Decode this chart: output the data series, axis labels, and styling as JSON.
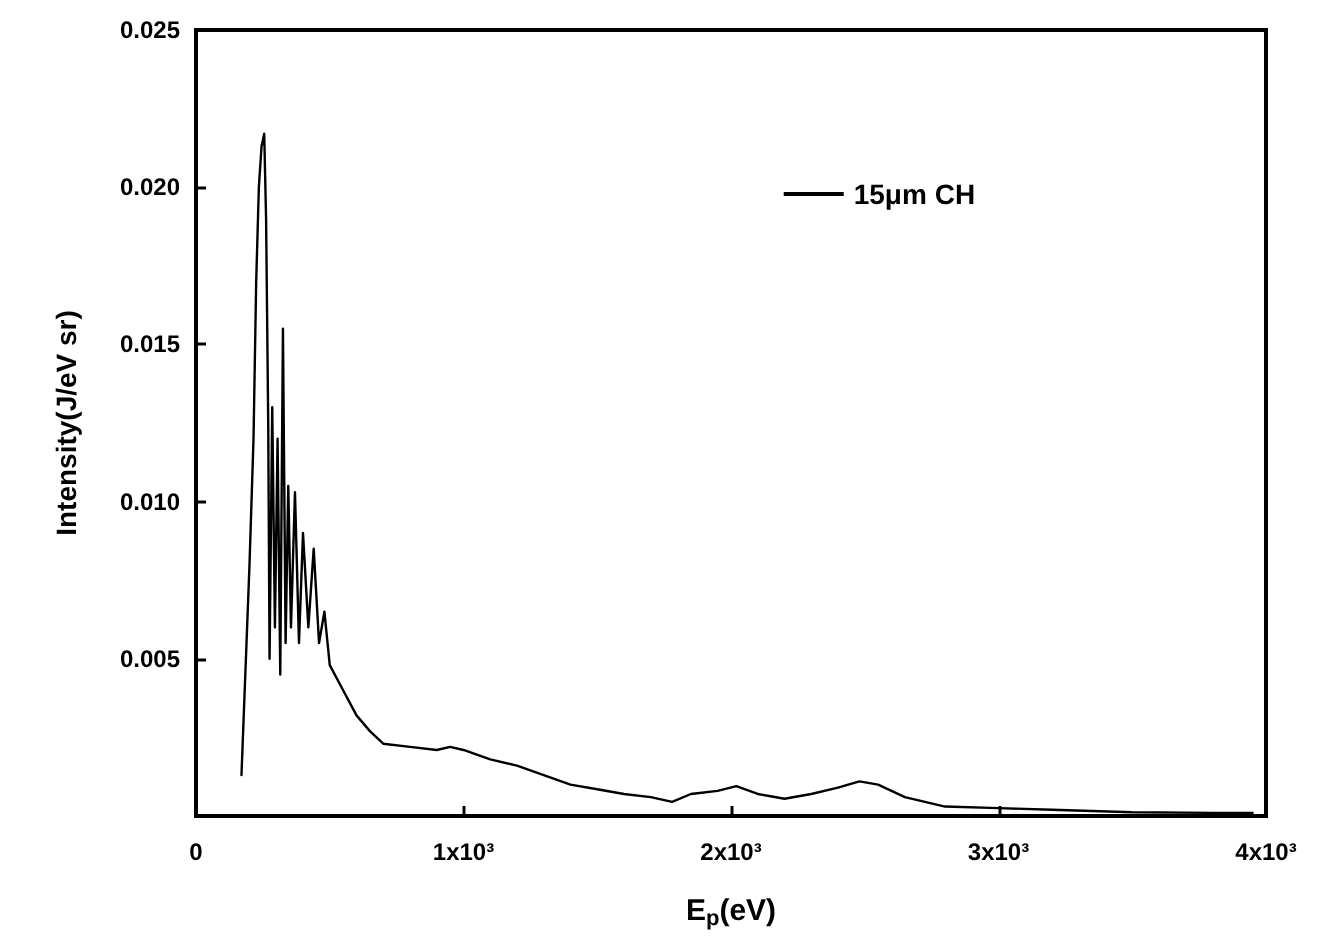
{
  "chart_data": {
    "type": "line",
    "xlabel": "E$_{p}$(eV)",
    "ylabel": "Intensity(J/eV sr)",
    "legend": "top right",
    "marker": "none",
    "line_style": "solid",
    "grid": false,
    "xlim": [
      0,
      4000
    ],
    "xticks": [
      0,
      {
        "value": 1000,
        "label": "1x10³"
      },
      {
        "value": 2000,
        "label": "2x10³"
      },
      {
        "value": 3000,
        "label": "3x10³"
      },
      {
        "value": 4000,
        "label": "4x10³"
      }
    ],
    "ylim": [
      0,
      0.025
    ],
    "yticks": [
      0.005,
      {
        "value": 0.01,
        "label": "0.010"
      },
      0.015,
      {
        "value": 0.02,
        "label": "0.020"
      },
      0.025
    ],
    "series": [
      {
        "name": "15μm CH",
        "color": "#000000",
        "x": [
          170,
          200,
          215,
          225,
          235,
          245,
          255,
          262,
          270,
          275,
          285,
          295,
          305,
          315,
          325,
          335,
          345,
          355,
          370,
          385,
          400,
          420,
          440,
          460,
          480,
          500,
          550,
          600,
          650,
          700,
          800,
          900,
          950,
          1000,
          1100,
          1200,
          1300,
          1400,
          1500,
          1600,
          1700,
          1780,
          1850,
          1950,
          2020,
          2100,
          2200,
          2300,
          2400,
          2480,
          2550,
          2650,
          2800,
          3000,
          3200,
          3500,
          3800,
          3950
        ],
        "values": [
          0.0013,
          0.008,
          0.012,
          0.017,
          0.02,
          0.0213,
          0.0217,
          0.019,
          0.0125,
          0.005,
          0.013,
          0.006,
          0.012,
          0.0045,
          0.0155,
          0.0055,
          0.0105,
          0.006,
          0.0103,
          0.0055,
          0.009,
          0.006,
          0.0085,
          0.0055,
          0.0065,
          0.0048,
          0.004,
          0.0032,
          0.0027,
          0.0023,
          0.0022,
          0.0021,
          0.0022,
          0.0021,
          0.0018,
          0.0016,
          0.0013,
          0.001,
          0.00085,
          0.0007,
          0.0006,
          0.00045,
          0.0007,
          0.0008,
          0.00095,
          0.0007,
          0.00055,
          0.0007,
          0.0009,
          0.0011,
          0.001,
          0.0006,
          0.0003,
          0.00025,
          0.0002,
          0.00012,
          0.0001,
          0.0001
        ]
      }
    ]
  }
}
